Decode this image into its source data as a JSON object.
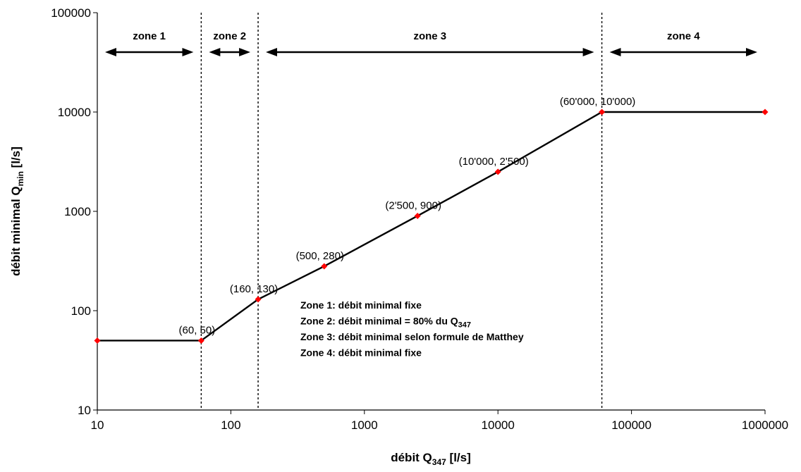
{
  "chart_data": {
    "type": "line",
    "x_scale": "log",
    "y_scale": "log",
    "xlim": [
      10,
      1000000
    ],
    "ylim": [
      10,
      100000
    ],
    "xlabel": "débit Q",
    "xlabel_sub": "347",
    "xlabel_unit": " [l/s]",
    "ylabel": "débit minimal Q",
    "ylabel_sub": "min",
    "ylabel_unit": " [l/s]",
    "x_ticks": [
      {
        "value": 10,
        "label": "10"
      },
      {
        "value": 100,
        "label": "100"
      },
      {
        "value": 1000,
        "label": "1000"
      },
      {
        "value": 10000,
        "label": "10000"
      },
      {
        "value": 100000,
        "label": "100000"
      },
      {
        "value": 1000000,
        "label": "1000000"
      }
    ],
    "y_ticks": [
      {
        "value": 10,
        "label": "10"
      },
      {
        "value": 100,
        "label": "100"
      },
      {
        "value": 1000,
        "label": "1000"
      },
      {
        "value": 10000,
        "label": "10000"
      },
      {
        "value": 100000,
        "label": "100000"
      }
    ],
    "grid": false,
    "series": [
      {
        "points": [
          {
            "x": 10,
            "y": 50,
            "label": ""
          },
          {
            "x": 60,
            "y": 50,
            "label": "(60, 50)"
          },
          {
            "x": 160,
            "y": 130,
            "label": "(160, 130)"
          },
          {
            "x": 500,
            "y": 280,
            "label": "(500, 280)"
          },
          {
            "x": 2500,
            "y": 900,
            "label": "(2'500, 900)"
          },
          {
            "x": 10000,
            "y": 2500,
            "label": "(10'000, 2'500)"
          },
          {
            "x": 60000,
            "y": 10000,
            "label": "(60'000, 10'000)"
          },
          {
            "x": 1000000,
            "y": 10000,
            "label": ""
          }
        ],
        "line_color": "#000000",
        "marker_color": "#ff0000"
      }
    ],
    "zone_boundaries": [
      60,
      160,
      60000
    ],
    "zones": [
      {
        "label": "zone 1",
        "x_start": 10,
        "x_end": 60
      },
      {
        "label": "zone 2",
        "x_start": 60,
        "x_end": 160
      },
      {
        "label": "zone 3",
        "x_start": 160,
        "x_end": 60000
      },
      {
        "label": "zone 4",
        "x_start": 60000,
        "x_end": 1000000
      }
    ],
    "annotations": [
      {
        "text": "Zone 1: débit minimal fixe",
        "sub": ""
      },
      {
        "text": "Zone 2: débit minimal = 80% du Q",
        "sub": "347"
      },
      {
        "text": "Zone 3: débit minimal selon formule de Matthey",
        "sub": ""
      },
      {
        "text": "Zone 4: débit minimal fixe",
        "sub": ""
      }
    ]
  }
}
